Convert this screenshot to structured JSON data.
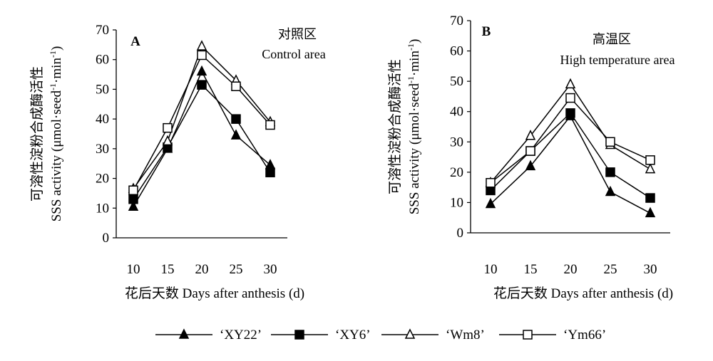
{
  "chart_data": [
    {
      "type": "line",
      "panel_label": "A",
      "annotation_cn": "对照区",
      "annotation_en": "Control area",
      "ylabel_cn": "可溶性淀粉合成酶活性",
      "ylabel_en_parts": [
        "SSS activity (μmol·seed",
        "-1",
        "·min",
        "-1",
        ")"
      ],
      "xlabel": "花后天数  Days after anthesis (d)",
      "x": [
        10,
        15,
        20,
        25,
        30
      ],
      "ylim": [
        0,
        70
      ],
      "yticks": [
        0,
        10,
        20,
        30,
        40,
        50,
        60,
        70
      ],
      "series": [
        {
          "name": "‘XY22’",
          "values": [
            10.5,
            30,
            56,
            34.5,
            24.5
          ]
        },
        {
          "name": "‘XY6’",
          "values": [
            13,
            30.5,
            51.5,
            40,
            22
          ]
        },
        {
          "name": "‘Wm8’",
          "values": [
            16.5,
            32.5,
            64.5,
            53,
            39
          ]
        },
        {
          "name": "‘Ym66’",
          "values": [
            16,
            37,
            61.5,
            51,
            38
          ]
        }
      ]
    },
    {
      "type": "line",
      "panel_label": "B",
      "annotation_cn": "高温区",
      "annotation_en": "High temperature area",
      "ylabel_cn": "可溶性淀粉合成酶活性",
      "ylabel_en_parts": [
        "SSS activity (μmol·seed",
        "-1",
        "·min",
        "-1",
        ")"
      ],
      "xlabel": "花后天数  Days after anthesis (d)",
      "x": [
        10,
        15,
        20,
        25,
        30
      ],
      "ylim": [
        0,
        70
      ],
      "yticks": [
        0,
        10,
        20,
        30,
        40,
        50,
        60,
        70
      ],
      "series": [
        {
          "name": "‘XY22’",
          "values": [
            9.5,
            22,
            38.5,
            13.5,
            6.5
          ]
        },
        {
          "name": "‘XY6’",
          "values": [
            14,
            27,
            39.5,
            20,
            11.5
          ]
        },
        {
          "name": "‘Wm8’",
          "values": [
            16.5,
            32,
            49,
            29,
            21
          ]
        },
        {
          "name": "‘Ym66’",
          "values": [
            16.5,
            27,
            44.5,
            30,
            24
          ]
        }
      ]
    }
  ],
  "legend": [
    {
      "label": "‘XY22’",
      "marker": "filled-triangle"
    },
    {
      "label": "‘XY6’",
      "marker": "filled-square"
    },
    {
      "label": "‘Wm8’",
      "marker": "open-triangle"
    },
    {
      "label": "‘Ym66’",
      "marker": "open-square"
    }
  ]
}
